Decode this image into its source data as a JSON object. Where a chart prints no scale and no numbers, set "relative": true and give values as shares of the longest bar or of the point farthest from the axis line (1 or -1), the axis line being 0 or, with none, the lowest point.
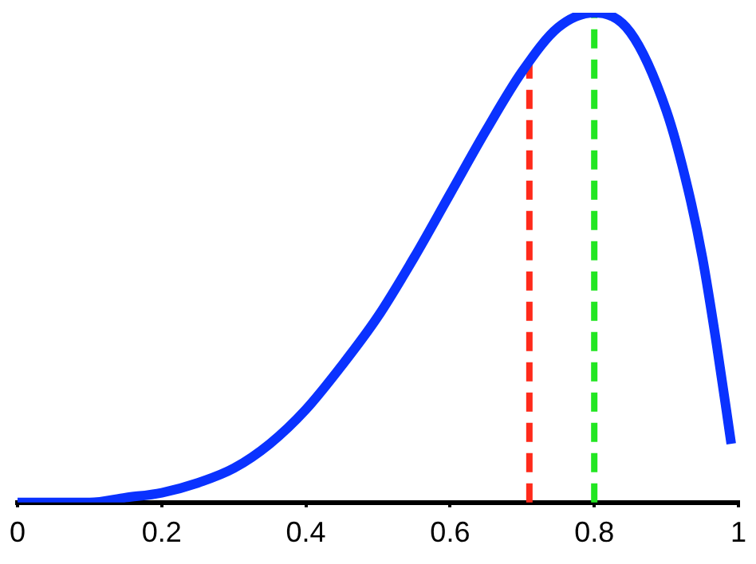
{
  "chart_data": {
    "type": "line",
    "relative": true,
    "x": [
      0,
      0.05,
      0.1,
      0.15,
      0.2,
      0.25,
      0.3,
      0.35,
      0.4,
      0.45,
      0.5,
      0.55,
      0.6,
      0.65,
      0.7,
      0.75,
      0.8,
      0.85,
      0.9,
      0.93,
      0.95,
      0.97,
      0.99
    ],
    "series": [
      {
        "color": "#0a32ff",
        "values": [
          0,
          0,
          0,
          0.01,
          0.02,
          0.04,
          0.07,
          0.12,
          0.19,
          0.28,
          0.38,
          0.5,
          0.63,
          0.76,
          0.88,
          0.97,
          1,
          0.96,
          0.8,
          0.64,
          0.5,
          0.32,
          0.12
        ]
      }
    ],
    "xlim": [
      0,
      1
    ],
    "xticks": [
      0,
      0.2,
      0.4,
      0.6,
      0.8,
      1
    ],
    "ref_lines": [
      {
        "axis": "x",
        "value": 0.71,
        "color": "#ff2a1a",
        "line_style": "dashed"
      },
      {
        "axis": "x",
        "value": 0.8,
        "color": "#22e622",
        "line_style": "dashed"
      }
    ],
    "grid": false,
    "legend": false,
    "marker": "none",
    "line_style": "solid"
  }
}
